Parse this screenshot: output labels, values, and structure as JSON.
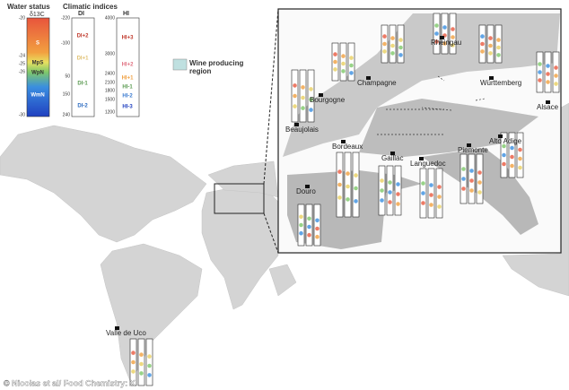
{
  "legend": {
    "water_status": {
      "title": "Water status",
      "symbol": "δ13C",
      "ticks": [
        "-20",
        "-24",
        "-25",
        "-26",
        "-30"
      ],
      "classes": [
        "S",
        "MpS",
        "WpN",
        "WmN"
      ]
    },
    "climatic": {
      "title": "Climatic indices",
      "di": {
        "label": "DI",
        "ticks": [
          "-220",
          "-100",
          "50",
          "150",
          "240"
        ],
        "classes": [
          "DI+2",
          "DI+1",
          "DI-1",
          "DI-2"
        ]
      },
      "hi": {
        "label": "HI",
        "ticks": [
          "4000",
          "3000",
          "2400",
          "2100",
          "1800",
          "1500",
          "1200"
        ],
        "classes": [
          "HI+3",
          "HI+2",
          "HI+1",
          "HI-1",
          "HI-2",
          "HI-3"
        ]
      }
    },
    "map_legend": "Wine producing region"
  },
  "regions": [
    "Champagne",
    "Rheingau",
    "Württemberg",
    "Bourgogne",
    "Alsace",
    "Beaujolais",
    "Alto Adige",
    "Bordeaux",
    "Gaillac",
    "Languedoc",
    "Piemonte",
    "Douro",
    "Valle de Uco"
  ],
  "credit": "© Nicolas et al/ Food Chemistry: X"
}
